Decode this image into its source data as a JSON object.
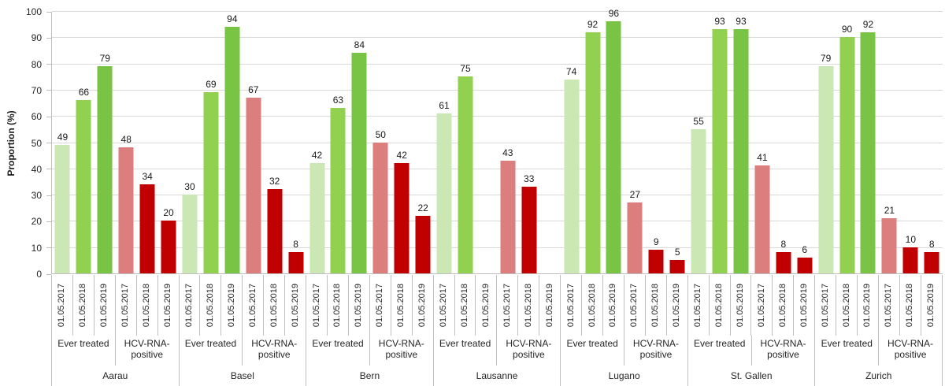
{
  "chart_data": {
    "type": "bar",
    "title": "",
    "ylabel": "Proportion (%)",
    "xlabel": "",
    "ylim": [
      0,
      100
    ],
    "ytick_interval": 10,
    "grid": true,
    "legend": "none",
    "categories_level1_dates": [
      "01.05.2017",
      "01.05.2018",
      "01.05.2019"
    ],
    "categories_level2_groups": [
      "Ever treated",
      "HCV-RNA-positive"
    ],
    "categories_level3_cities": [
      "Aarau",
      "Basel",
      "Bern",
      "Lausanne",
      "Lugano",
      "St. Gallen",
      "Zurich"
    ],
    "group_defs": [
      {
        "label": "Ever treated",
        "key": "ever_treated",
        "colors": [
          {
            "fill": "#cbe7b4",
            "pattern": false
          },
          {
            "fill": "#92d050",
            "pattern": true
          },
          {
            "fill": "#79c445",
            "pattern": false
          }
        ]
      },
      {
        "label": "HCV-RNA-positive",
        "key": "hcv_rna_positive",
        "colors": [
          {
            "fill": "#dd7e7e",
            "pattern": false
          },
          {
            "fill": "#c00000",
            "pattern": true
          },
          {
            "fill": "#c00000",
            "pattern": false
          }
        ]
      }
    ],
    "series": [
      {
        "city": "Aarau",
        "ever_treated": [
          49,
          66,
          79
        ],
        "hcv_rna_positive": [
          48,
          34,
          20
        ]
      },
      {
        "city": "Basel",
        "ever_treated": [
          30,
          69,
          94
        ],
        "hcv_rna_positive": [
          67,
          32,
          8
        ]
      },
      {
        "city": "Bern",
        "ever_treated": [
          42,
          63,
          84
        ],
        "hcv_rna_positive": [
          50,
          42,
          22
        ]
      },
      {
        "city": "Lausanne",
        "ever_treated": [
          61,
          75,
          null
        ],
        "hcv_rna_positive": [
          43,
          33,
          null
        ]
      },
      {
        "city": "Lugano",
        "ever_treated": [
          74,
          92,
          96
        ],
        "hcv_rna_positive": [
          27,
          9,
          5
        ]
      },
      {
        "city": "St. Gallen",
        "ever_treated": [
          55,
          93,
          93
        ],
        "hcv_rna_positive": [
          41,
          8,
          6
        ]
      },
      {
        "city": "Zurich",
        "ever_treated": [
          79,
          90,
          92
        ],
        "hcv_rna_positive": [
          21,
          10,
          8
        ]
      }
    ],
    "axis_colors": {
      "gridline": "#d9d9d9",
      "axis_line": "#bfbfbf",
      "text": "#262626"
    }
  }
}
